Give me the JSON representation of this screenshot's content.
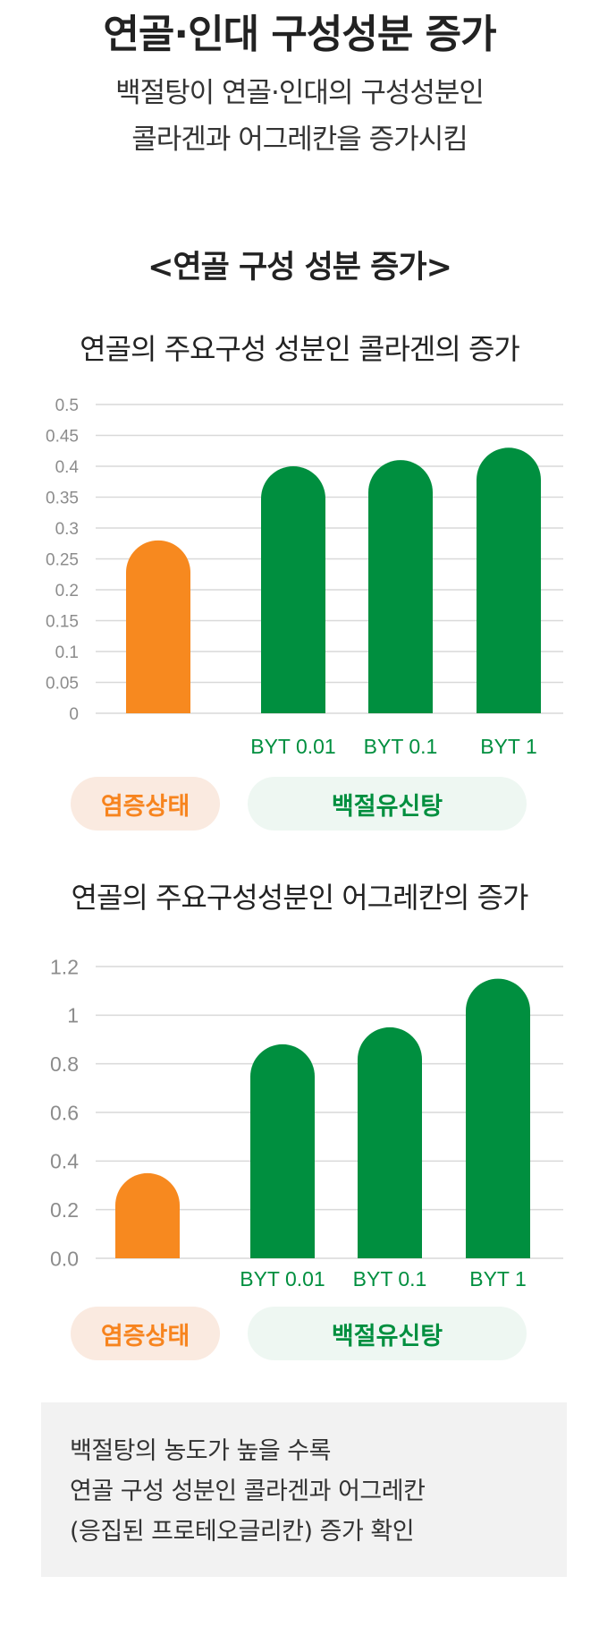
{
  "header": {
    "title": "연골·인대 구성성분 증가",
    "subtitle_line1": "백절탕이 연골·인대의 구성성분인",
    "subtitle_line2": "콜라겐과 어그레칸을 증가시킴"
  },
  "section": {
    "title": "<연골 구성 성분 증가>"
  },
  "colors": {
    "orange": "#f7891f",
    "green": "#008f3f",
    "grid": "#d9d9d9",
    "tick": "#8c8c8c"
  },
  "chart_data": [
    {
      "type": "bar",
      "title": "연골의 주요구성 성분인 콜라겐의 증가",
      "categories": [
        "",
        "BYT 0.01",
        "BYT 0.1",
        "BYT 1"
      ],
      "values": [
        0.28,
        0.4,
        0.41,
        0.43
      ],
      "bar_colors": [
        "orange",
        "green",
        "green",
        "green"
      ],
      "yticks": [
        0,
        0.05,
        0.1,
        0.15,
        0.2,
        0.25,
        0.3,
        0.35,
        0.4,
        0.45,
        0.5
      ],
      "ytick_labels": [
        "0",
        "0.05",
        "0.1",
        "0.15",
        "0.2",
        "0.25",
        "0.3",
        "0.35",
        "0.4",
        "0.45",
        "0.5"
      ],
      "ylim": [
        0,
        0.5
      ],
      "grid": true,
      "groups": [
        "염증상태",
        "백절유신탕"
      ]
    },
    {
      "type": "bar",
      "title": "연골의 주요구성성분인 어그레칸의 증가",
      "categories": [
        "",
        "BYT 0.01",
        "BYT 0.1",
        "BYT 1"
      ],
      "values": [
        0.35,
        0.88,
        0.95,
        1.15
      ],
      "bar_colors": [
        "orange",
        "green",
        "green",
        "green"
      ],
      "yticks": [
        0,
        0.2,
        0.4,
        0.6,
        0.8,
        1.0,
        1.2
      ],
      "ytick_labels": [
        "0.0",
        "0.2",
        "0.4",
        "0.6",
        "0.8",
        "1",
        "1.2"
      ],
      "ylim": [
        0,
        1.2
      ],
      "grid": true,
      "groups": [
        "염증상태",
        "백절유신탕"
      ]
    }
  ],
  "summary": {
    "line1": "백절탕의 농도가 높을 수록",
    "line2": "연골 구성 성분인 콜라겐과 어그레칸",
    "line3": "(응집된 프로테오글리칸) 증가 확인"
  }
}
